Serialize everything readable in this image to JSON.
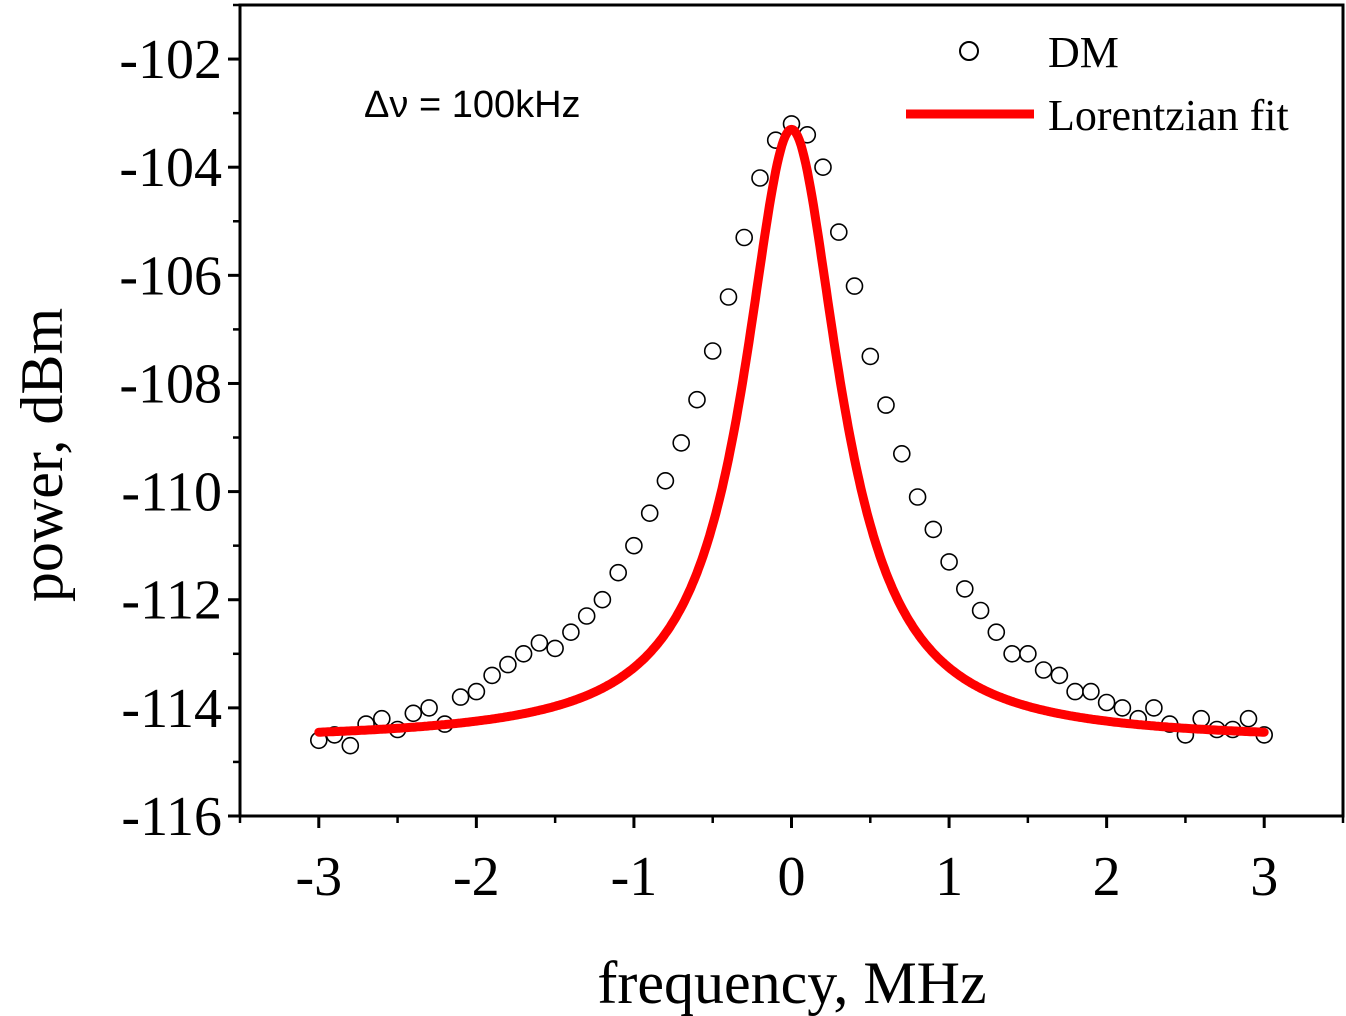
{
  "chart_data": {
    "type": "scatter",
    "xlabel": "frequency, MHz",
    "ylabel": "power, dBm",
    "xlim": [
      -3.5,
      3.5
    ],
    "ylim": [
      -116,
      -101
    ],
    "xticks": [
      -3,
      -2,
      -1,
      0,
      1,
      2,
      3
    ],
    "xtick_labels": [
      "-3",
      "-2",
      "-1",
      "0",
      "1",
      "2",
      "3"
    ],
    "yticks": [
      -116,
      -114,
      -112,
      -110,
      -108,
      -106,
      -104,
      -102
    ],
    "ytick_labels": [
      "-116",
      "-114",
      "-112",
      "-110",
      "-108",
      "-106",
      "-104",
      "-102"
    ],
    "annotation": "Δν = 100kHz",
    "legend": {
      "position": "top-right"
    },
    "series": [
      {
        "name": "DM",
        "kind": "scatter",
        "marker": "open-circle",
        "x": [
          -3.0,
          -2.9,
          -2.8,
          -2.7,
          -2.6,
          -2.5,
          -2.4,
          -2.3,
          -2.2,
          -2.1,
          -2.0,
          -1.9,
          -1.8,
          -1.7,
          -1.6,
          -1.5,
          -1.4,
          -1.3,
          -1.2,
          -1.1,
          -1.0,
          -0.9,
          -0.8,
          -0.7,
          -0.6,
          -0.5,
          -0.4,
          -0.3,
          -0.2,
          -0.1,
          0.0,
          0.1,
          0.2,
          0.3,
          0.4,
          0.5,
          0.6,
          0.7,
          0.8,
          0.9,
          1.0,
          1.1,
          1.2,
          1.3,
          1.4,
          1.5,
          1.6,
          1.7,
          1.8,
          1.9,
          2.0,
          2.1,
          2.2,
          2.3,
          2.4,
          2.5,
          2.6,
          2.7,
          2.8,
          2.9,
          3.0
        ],
        "y": [
          -114.6,
          -114.5,
          -114.7,
          -114.3,
          -114.2,
          -114.4,
          -114.1,
          -114.0,
          -114.3,
          -113.8,
          -113.7,
          -113.4,
          -113.2,
          -113.0,
          -112.8,
          -112.9,
          -112.6,
          -112.3,
          -112.0,
          -111.5,
          -111.0,
          -110.4,
          -109.8,
          -109.1,
          -108.3,
          -107.4,
          -106.4,
          -105.3,
          -104.2,
          -103.5,
          -103.2,
          -103.4,
          -104.0,
          -105.2,
          -106.2,
          -107.5,
          -108.4,
          -109.3,
          -110.1,
          -110.7,
          -111.3,
          -111.8,
          -112.2,
          -112.6,
          -113.0,
          -113.0,
          -113.3,
          -113.4,
          -113.7,
          -113.7,
          -113.9,
          -114.0,
          -114.2,
          -114.0,
          -114.3,
          -114.5,
          -114.2,
          -114.4,
          -114.4,
          -114.2,
          -114.5
        ]
      },
      {
        "name": "Lorentzian fit",
        "kind": "line",
        "color": "#ff0000",
        "fit_params": {
          "baseline_dBm": -114.62,
          "peak_dBm": -103.3,
          "hwhm_MHz": 0.37
        }
      }
    ]
  }
}
